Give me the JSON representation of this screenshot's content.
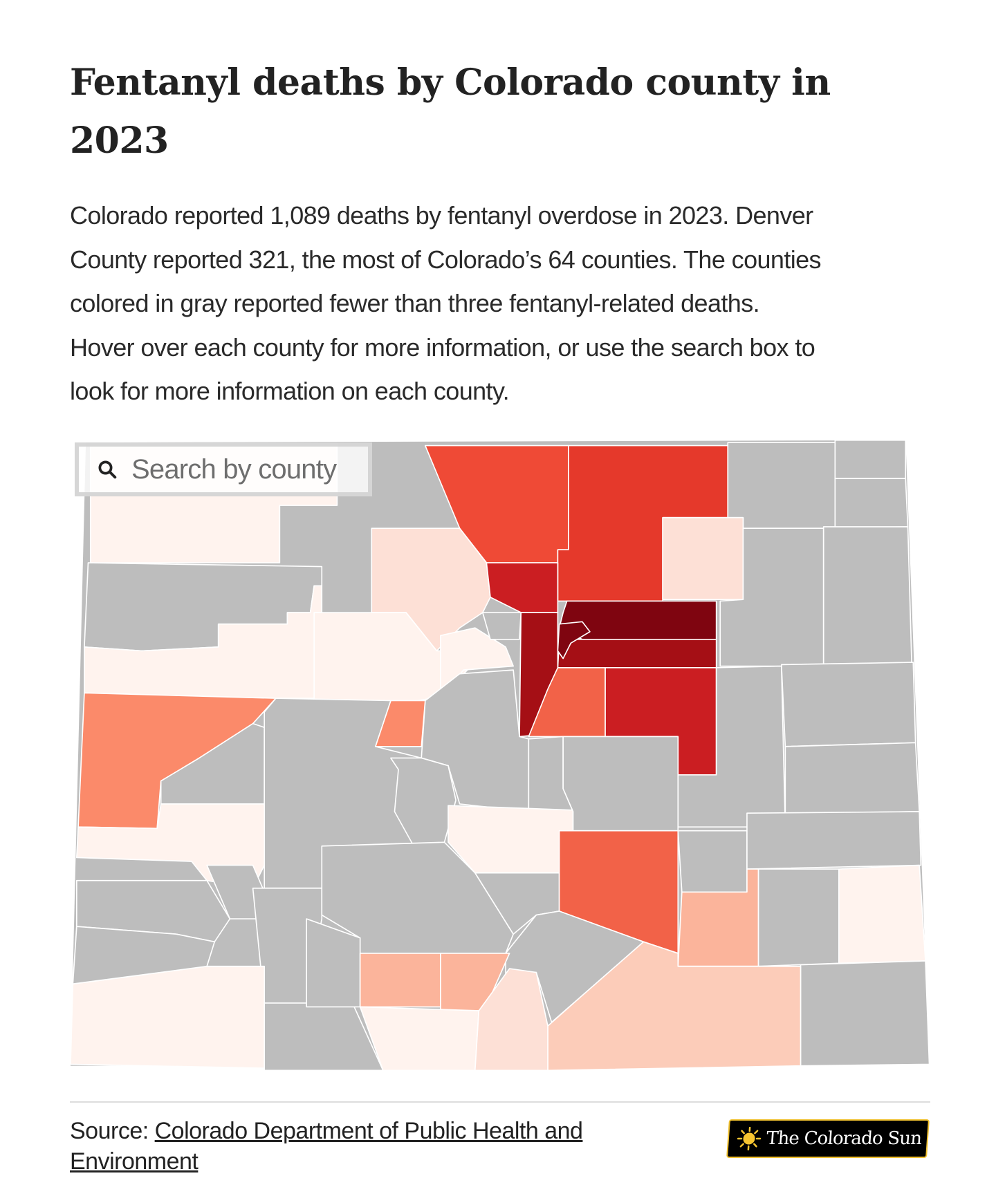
{
  "title": "Fentanyl deaths by Colorado county in 2023",
  "description_lines": [
    "Colorado reported 1,089 deaths by fentanyl overdose in 2023. Denver",
    "County reported 321, the most of Colorado’s 64 counties. The counties",
    "colored in gray reported fewer than three fentanyl-related deaths.",
    "Hover over each county for more information, or use the search box to",
    "look for more information on each county."
  ],
  "search": {
    "placeholder": "Search by county",
    "icon": "search-icon"
  },
  "source": {
    "label": "Source: ",
    "link_text": "Colorado Department of Public Health and Environment"
  },
  "logo": {
    "text": "The Colorado Sun",
    "icon": "sun-icon"
  },
  "map": {
    "statewide_total": 1089,
    "denver_total": 321,
    "county_count": 64,
    "no_data_color": "#bdbdbd",
    "color_scale": [
      "#fff3ee",
      "#fde0d6",
      "#fcccb9",
      "#fbb49b",
      "#fb8a6a",
      "#f26248",
      "#ef4a36",
      "#e5392b",
      "#cb1e22",
      "#a50f15",
      "#7f0510"
    ]
  }
}
